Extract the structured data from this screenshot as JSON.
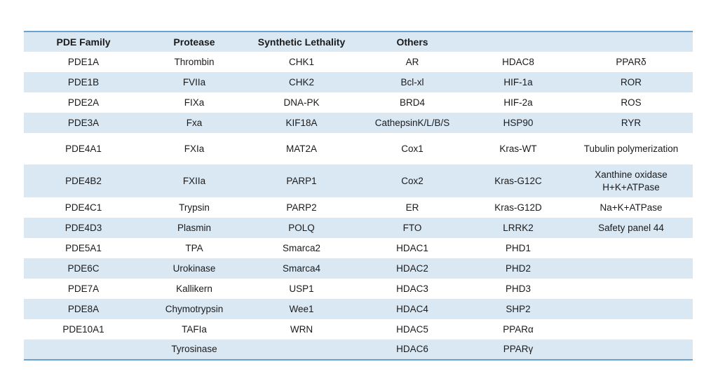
{
  "colors": {
    "stripe_blue": "#DAE8F4",
    "border_blue": "#6CA1CD",
    "text": "#1b1b1b",
    "background": "#ffffff"
  },
  "chart_data": {
    "type": "table",
    "title": "",
    "layout": {
      "striped": true,
      "header_bold": true,
      "cell_align": "center",
      "top_bottom_rules": true
    },
    "headers": [
      "PDE Family",
      "Protease",
      "Synthetic Lethality",
      "Others",
      "",
      ""
    ],
    "rows": [
      [
        "PDE1A",
        "Thrombin",
        "CHK1",
        "AR",
        "HDAC8",
        "PPARδ"
      ],
      [
        "PDE1B",
        "FVIIa",
        "CHK2",
        "Bcl-xl",
        "HIF-1a",
        "ROR"
      ],
      [
        "PDE2A",
        "FIXa",
        "DNA-PK",
        "BRD4",
        "HIF-2a",
        "ROS"
      ],
      [
        "PDE3A",
        "Fxa",
        "KIF18A",
        "CathepsinK/L/B/S",
        "HSP90",
        "RYR"
      ],
      [
        "PDE4A1",
        "FXIa",
        "MAT2A",
        "Cox1",
        "Kras-WT",
        "Tubulin polymerization"
      ],
      [
        "PDE4B2",
        "FXIIa",
        "PARP1",
        "Cox2",
        "Kras-G12C",
        "Xanthine oxidase\nH+K+ATPase"
      ],
      [
        "PDE4C1",
        "Trypsin",
        "PARP2",
        "ER",
        "Kras-G12D",
        "Na+K+ATPase"
      ],
      [
        "PDE4D3",
        "Plasmin",
        "POLQ",
        "FTO",
        "LRRK2",
        "Safety panel 44"
      ],
      [
        "PDE5A1",
        "TPA",
        "Smarca2",
        "HDAC1",
        "PHD1",
        ""
      ],
      [
        "PDE6C",
        "Urokinase",
        "Smarca4",
        "HDAC2",
        "PHD2",
        ""
      ],
      [
        "PDE7A",
        "Kallikern",
        "USP1",
        "HDAC3",
        "PHD3",
        ""
      ],
      [
        "PDE8A",
        "Chymotrypsin",
        "Wee1",
        "HDAC4",
        "SHP2",
        ""
      ],
      [
        "PDE10A1",
        "TAFIa",
        "WRN",
        "HDAC5",
        "PPARα",
        ""
      ],
      [
        "",
        "Tyrosinase",
        "",
        "HDAC6",
        "PPARγ",
        ""
      ]
    ]
  }
}
